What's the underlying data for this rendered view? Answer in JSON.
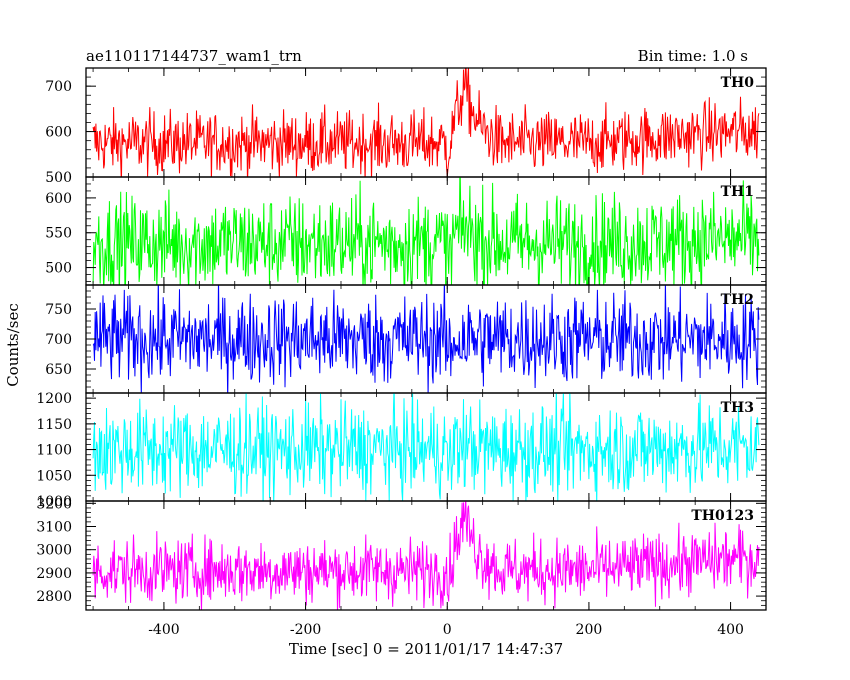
{
  "chart_data": {
    "type": "line",
    "title_left": "ae110117144737_wam1_trn",
    "title_right": "Bin time: 1.0 s",
    "xlabel": "Time [sec] 0 = 2011/01/17 14:47:37",
    "ylabel": "Counts/sec",
    "xlim": [
      -510,
      450
    ],
    "x_ticks": [
      -400,
      -200,
      0,
      200,
      400
    ],
    "x_range_data": [
      -500,
      440
    ],
    "bin_time": 1.0,
    "panels": [
      {
        "name": "TH0",
        "color": "#ff0000",
        "ylim": [
          500,
          740
        ],
        "yticks": [
          500,
          600,
          700
        ],
        "mean": 575,
        "noise": 35,
        "burst_peak": 700,
        "end_level": 600
      },
      {
        "name": "TH1",
        "color": "#00ff00",
        "ylim": [
          475,
          630
        ],
        "yticks": [
          500,
          550,
          600
        ],
        "mean": 535,
        "noise": 35,
        "burst_peak": 560,
        "end_level": 540
      },
      {
        "name": "TH2",
        "color": "#0000ff",
        "ylim": [
          610,
          790
        ],
        "yticks": [
          650,
          700,
          750
        ],
        "mean": 700,
        "noise": 38,
        "burst_peak": 700,
        "end_level": 700
      },
      {
        "name": "TH3",
        "color": "#00ffff",
        "ylim": [
          1000,
          1210
        ],
        "yticks": [
          1000,
          1050,
          1100,
          1150,
          1200
        ],
        "mean": 1100,
        "noise": 45,
        "burst_peak": 1110,
        "end_level": 1105
      },
      {
        "name": "TH0123",
        "color": "#ff00ff",
        "ylim": [
          2740,
          3210
        ],
        "yticks": [
          2800,
          2900,
          3000,
          3100,
          3200
        ],
        "mean": 2910,
        "noise": 70,
        "burst_peak": 3150,
        "end_level": 2960
      }
    ]
  }
}
